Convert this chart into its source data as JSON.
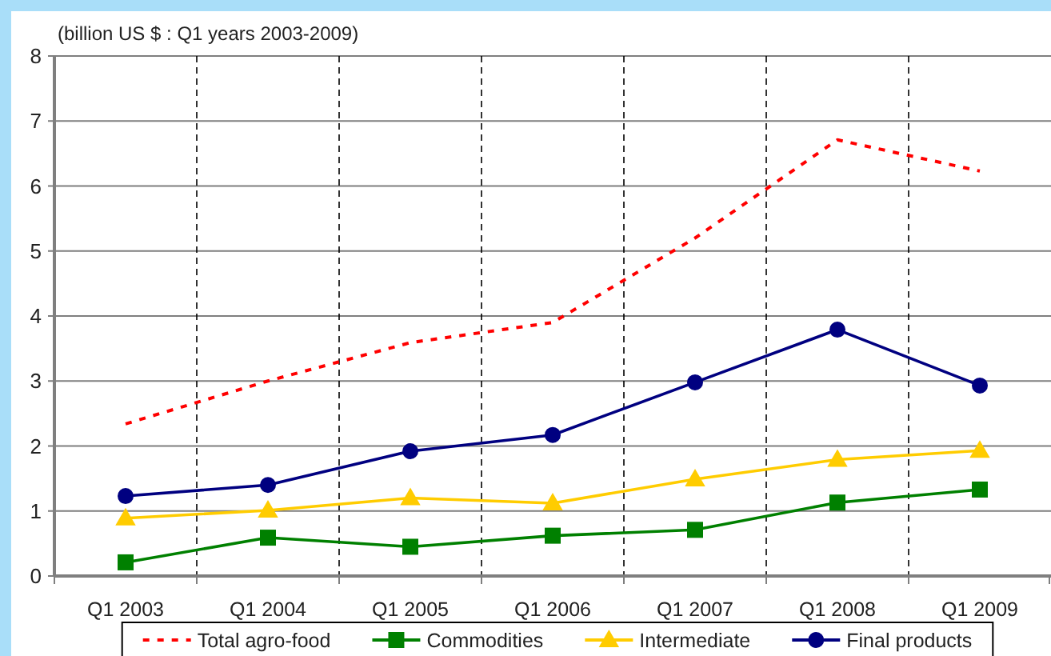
{
  "chart_data": {
    "type": "line",
    "title": "(billion US $ : Q1 years 2003-2009)",
    "categories": [
      "Q1 2003",
      "Q1 2004",
      "Q1 2005",
      "Q1 2006",
      "Q1 2007",
      "Q1 2008",
      "Q1 2009"
    ],
    "series": [
      {
        "name": "Total agro-food",
        "color": "#ff0000",
        "marker": "none",
        "line_style": "dashed",
        "values": [
          2.34,
          3.0,
          3.59,
          3.9,
          5.2,
          6.71,
          6.23
        ]
      },
      {
        "name": "Commodities",
        "color": "#008000",
        "marker": "square",
        "line_style": "solid",
        "values": [
          0.21,
          0.59,
          0.45,
          0.62,
          0.71,
          1.13,
          1.33
        ]
      },
      {
        "name": "Intermediate",
        "color": "#ffcc00",
        "marker": "triangle",
        "line_style": "solid",
        "values": [
          0.89,
          1.01,
          1.2,
          1.12,
          1.49,
          1.79,
          1.93
        ]
      },
      {
        "name": "Final products",
        "color": "#000080",
        "marker": "circle",
        "line_style": "solid",
        "values": [
          1.23,
          1.4,
          1.92,
          2.17,
          2.98,
          3.79,
          2.93
        ]
      }
    ],
    "ylim": [
      0,
      8
    ],
    "yticks": [
      0,
      1,
      2,
      3,
      4,
      5,
      6,
      7,
      8
    ],
    "grid": true,
    "legend": "bottom"
  }
}
